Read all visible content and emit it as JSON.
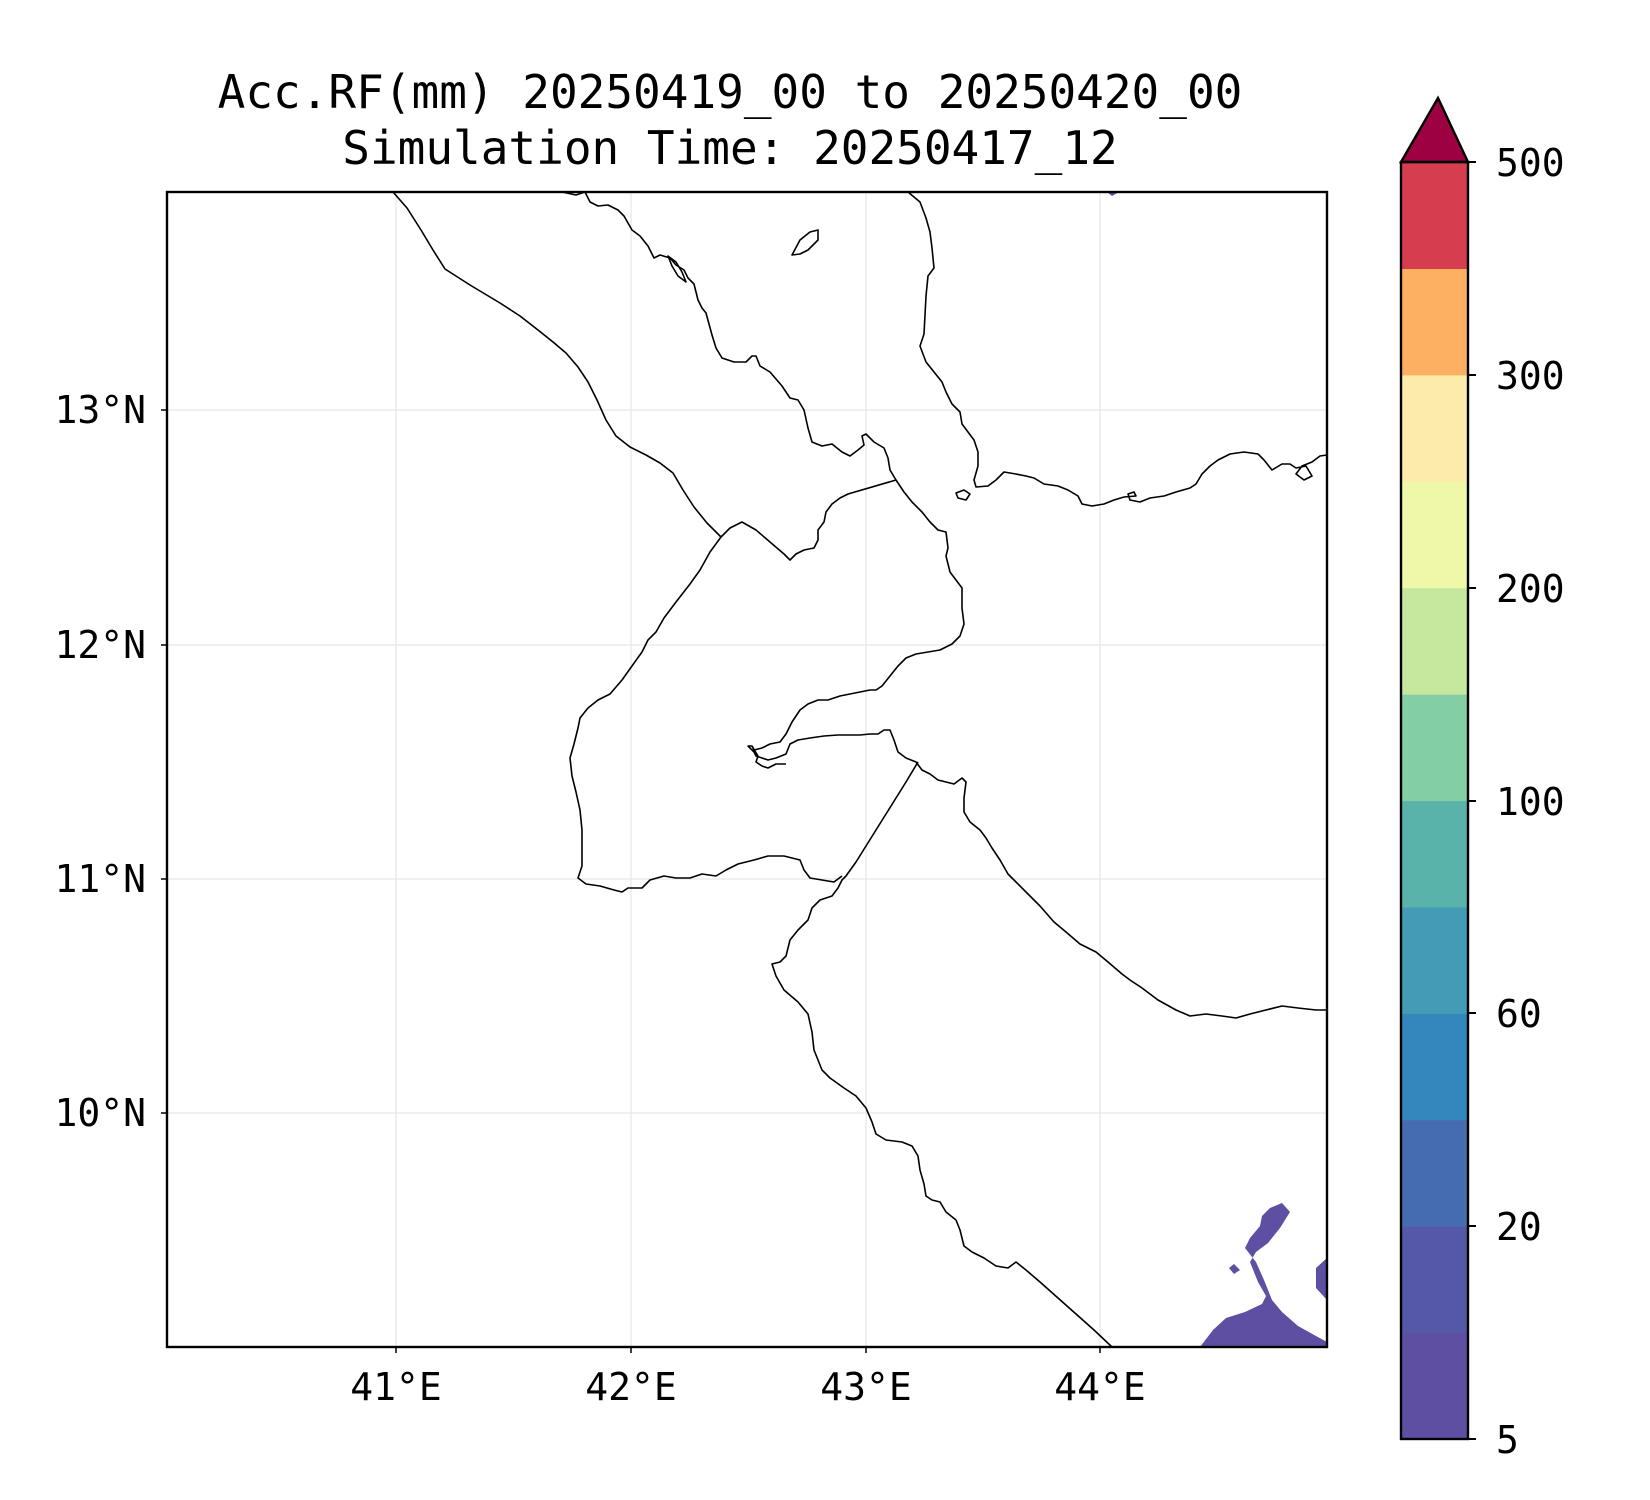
{
  "title": {
    "line1": "Acc.RF(mm) 20250419_00 to 20250420_00",
    "line2": "Simulation Time: 20250417_12"
  },
  "map": {
    "lon_range": [
      40.03,
      44.97
    ],
    "lat_range": [
      9.11,
      13.85
    ],
    "lon_ticks": [
      41,
      42,
      43,
      44
    ],
    "lon_tick_labels": [
      "41°E",
      "42°E",
      "43°E",
      "44°E"
    ],
    "lat_ticks": [
      13,
      12,
      11,
      10
    ],
    "lat_tick_labels": [
      "13°N",
      "12°N",
      "11°N",
      "10°N"
    ],
    "grid": true
  },
  "colorbar": {
    "levels": [
      "5",
      "20",
      "60",
      "100",
      "200",
      "300",
      "500"
    ],
    "extend": "max",
    "colors": [
      "#5e4fa2",
      "#5558a6",
      "#466cb0",
      "#3387bc",
      "#439bb5",
      "#59b3aa",
      "#83cea4",
      "#c5e79e",
      "#eef8a8",
      "#fdebab",
      "#fdb062",
      "#d63e4f",
      "#9e0142"
    ]
  }
}
